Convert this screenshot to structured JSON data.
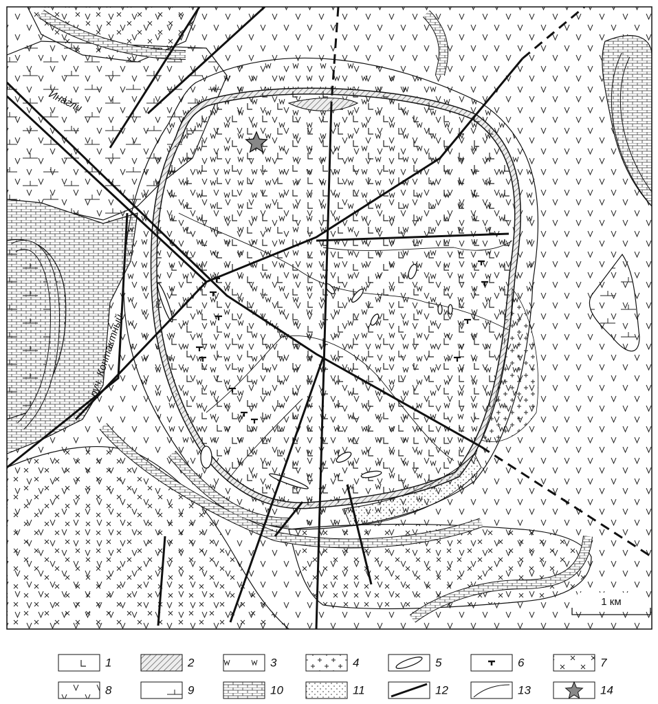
{
  "map": {
    "labels": {
      "river": "Инагли",
      "stream": "руч. Контактный",
      "scale": "1 км"
    },
    "legend": [
      "1",
      "2",
      "3",
      "4",
      "5",
      "6",
      "7",
      "8",
      "9",
      "10",
      "11",
      "12",
      "13",
      "14"
    ]
  }
}
